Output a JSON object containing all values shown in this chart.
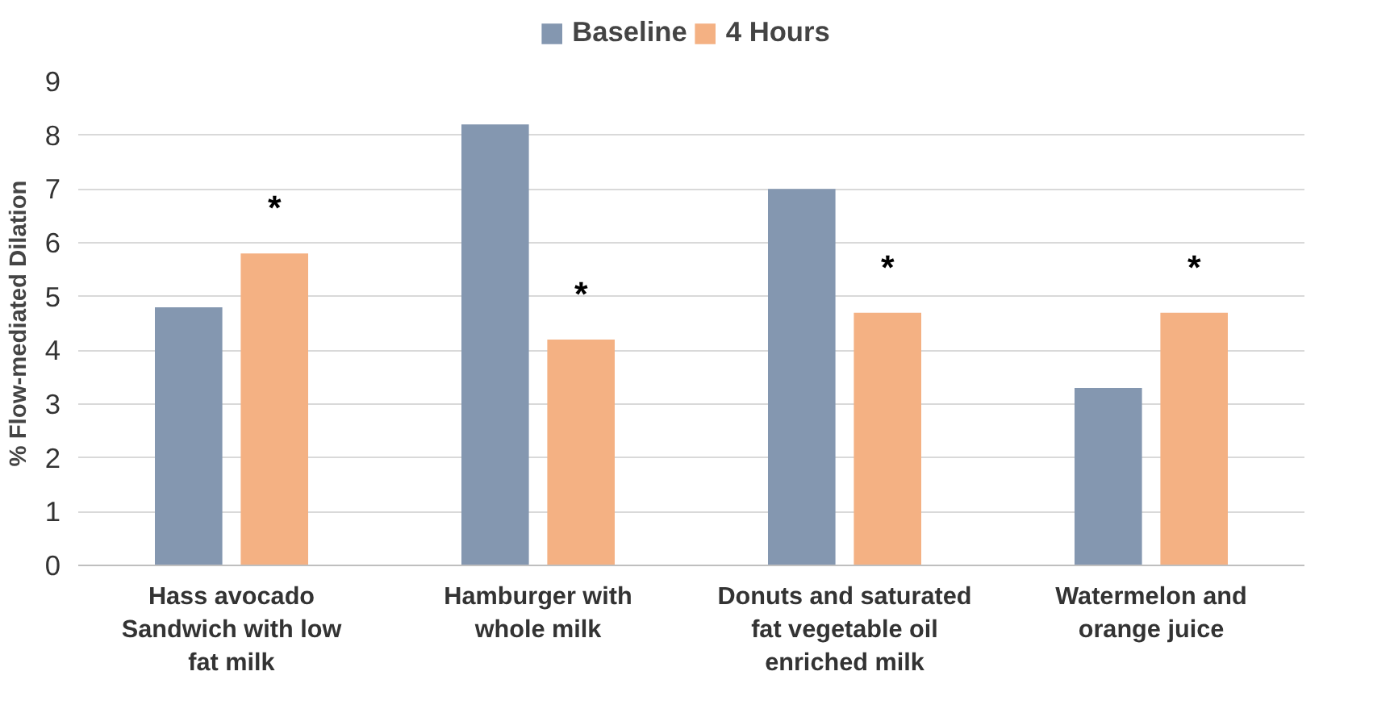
{
  "chart_data": {
    "type": "bar",
    "ylabel": "% Flow-mediated Dilation",
    "categories": [
      "Hass avocado\nSandwich with low\nfat milk",
      "Hamburger with\nwhole milk",
      "Donuts and saturated\nfat vegetable oil\nenriched milk",
      "Watermelon and\norange juice"
    ],
    "series": [
      {
        "name": "Baseline",
        "color": "#8497b0",
        "values": [
          4.8,
          8.2,
          7.0,
          3.3
        ]
      },
      {
        "name": "4 Hours",
        "color": "#f4b183",
        "values": [
          5.8,
          4.2,
          4.7,
          4.7
        ]
      }
    ],
    "ylim": [
      0,
      9
    ],
    "yticks": [
      0,
      1,
      2,
      3,
      4,
      5,
      6,
      7,
      8,
      9
    ],
    "grid": "y",
    "legend": "top",
    "annotations": [
      "*",
      "*",
      "*",
      "*"
    ]
  }
}
